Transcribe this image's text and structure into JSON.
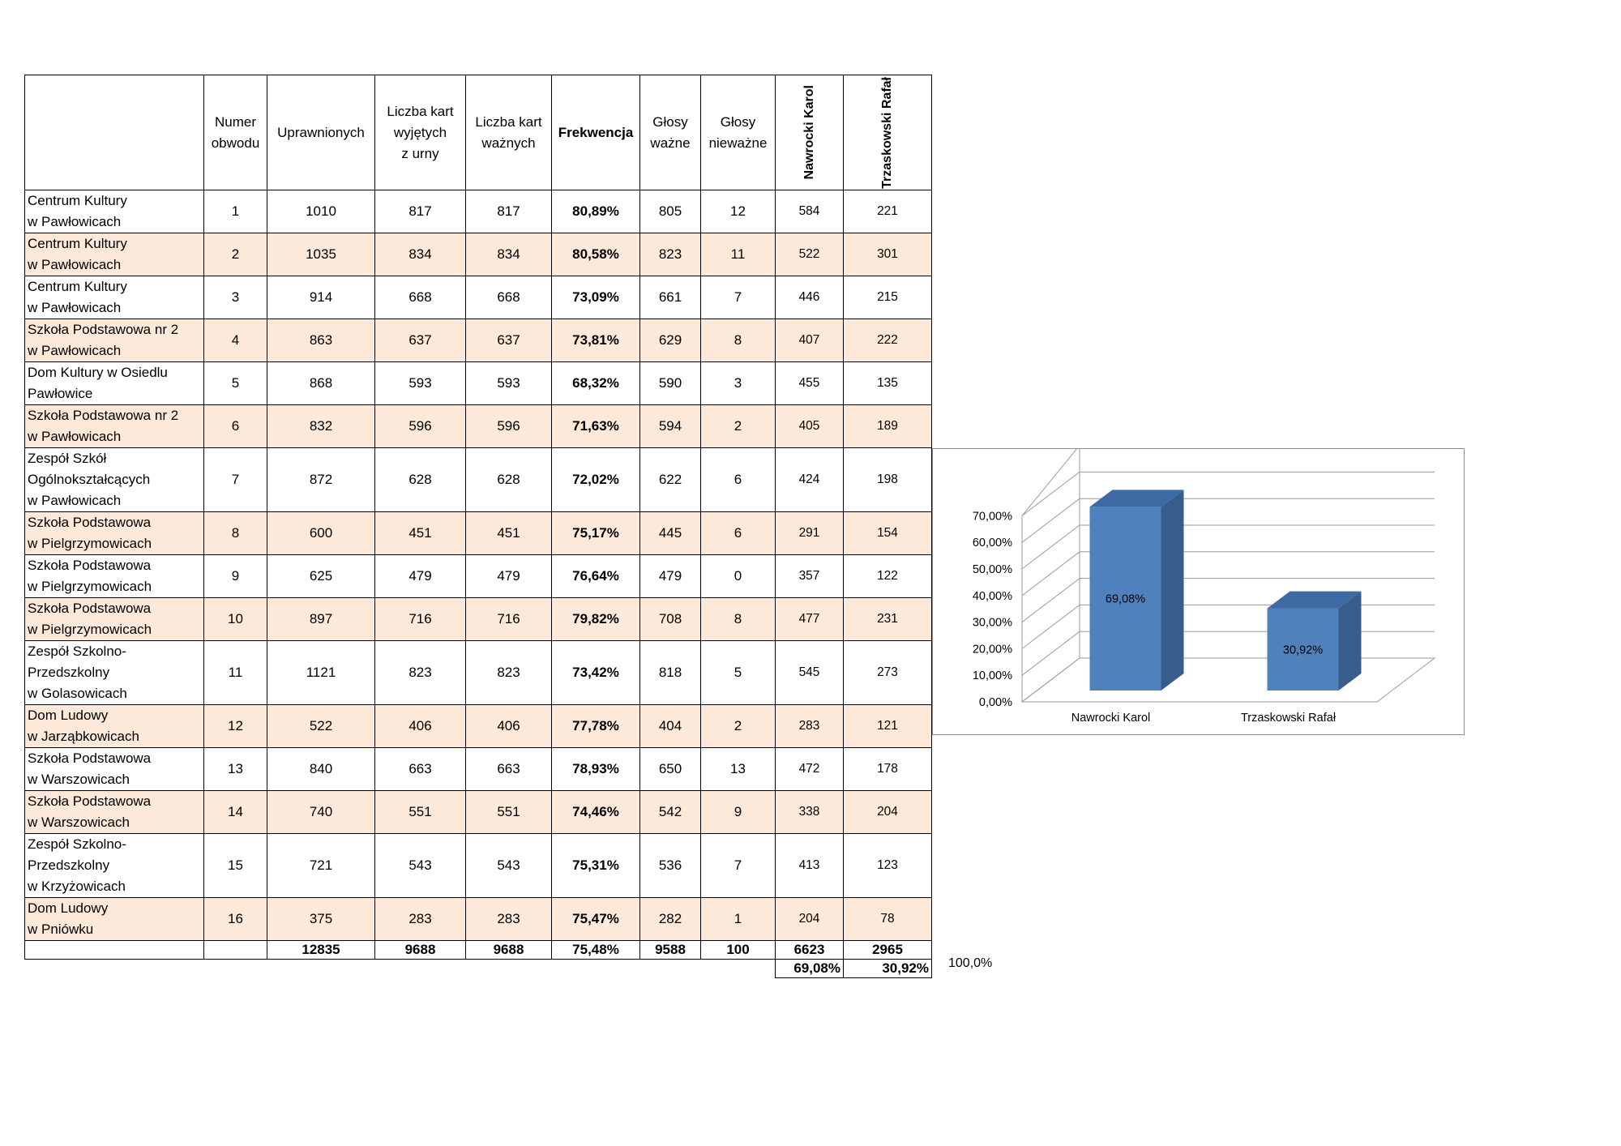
{
  "table": {
    "headers": {
      "location": "",
      "numer": [
        "Numer",
        "obwodu"
      ],
      "uprawnionych": "Uprawnionych",
      "wyjetych": [
        "Liczba kart",
        "wyjętych",
        "z urny"
      ],
      "waznych": [
        "Liczba kart",
        "ważnych"
      ],
      "frekwencja": "Frekwencja",
      "glosy_wazne": [
        "Głosy",
        "ważne"
      ],
      "glosy_niewazne": [
        "Głosy",
        "nieważne"
      ],
      "candidate1": "Nawrocki Karol",
      "candidate2": "Trzaskowski Rafał"
    },
    "rows": [
      {
        "location": [
          "Centrum Kultury",
          "w Pawłowicach"
        ],
        "numer": "1",
        "uprawnionych": "1010",
        "wyjetych": "817",
        "waznych": "817",
        "frekwencja": "80,89%",
        "glosy_wazne": "805",
        "glosy_niewazne": "12",
        "c1": "584",
        "c2": "221",
        "shaded": false
      },
      {
        "location": [
          "Centrum Kultury",
          "w Pawłowicach"
        ],
        "numer": "2",
        "uprawnionych": "1035",
        "wyjetych": "834",
        "waznych": "834",
        "frekwencja": "80,58%",
        "glosy_wazne": "823",
        "glosy_niewazne": "11",
        "c1": "522",
        "c2": "301",
        "shaded": true
      },
      {
        "location": [
          "Centrum Kultury",
          "w Pawłowicach"
        ],
        "numer": "3",
        "uprawnionych": "914",
        "wyjetych": "668",
        "waznych": "668",
        "frekwencja": "73,09%",
        "glosy_wazne": "661",
        "glosy_niewazne": "7",
        "c1": "446",
        "c2": "215",
        "shaded": false
      },
      {
        "location": [
          "Szkoła Podstawowa nr 2",
          "w Pawłowicach"
        ],
        "numer": "4",
        "uprawnionych": "863",
        "wyjetych": "637",
        "waznych": "637",
        "frekwencja": "73,81%",
        "glosy_wazne": "629",
        "glosy_niewazne": "8",
        "c1": "407",
        "c2": "222",
        "shaded": true
      },
      {
        "location": [
          "Dom Kultury w Osiedlu",
          "Pawłowice"
        ],
        "numer": "5",
        "uprawnionych": "868",
        "wyjetych": "593",
        "waznych": "593",
        "frekwencja": "68,32%",
        "glosy_wazne": "590",
        "glosy_niewazne": "3",
        "c1": "455",
        "c2": "135",
        "shaded": false
      },
      {
        "location": [
          "Szkoła Podstawowa nr 2",
          "w Pawłowicach"
        ],
        "numer": "6",
        "uprawnionych": "832",
        "wyjetych": "596",
        "waznych": "596",
        "frekwencja": "71,63%",
        "glosy_wazne": "594",
        "glosy_niewazne": "2",
        "c1": "405",
        "c2": "189",
        "shaded": true
      },
      {
        "location": [
          "Zespół Szkół",
          "Ogólnokształcących",
          "w Pawłowicach"
        ],
        "numer": "7",
        "uprawnionych": "872",
        "wyjetych": "628",
        "waznych": "628",
        "frekwencja": "72,02%",
        "glosy_wazne": "622",
        "glosy_niewazne": "6",
        "c1": "424",
        "c2": "198",
        "shaded": false
      },
      {
        "location": [
          "Szkoła Podstawowa",
          "w Pielgrzymowicach"
        ],
        "numer": "8",
        "uprawnionych": "600",
        "wyjetych": "451",
        "waznych": "451",
        "frekwencja": "75,17%",
        "glosy_wazne": "445",
        "glosy_niewazne": "6",
        "c1": "291",
        "c2": "154",
        "shaded": true
      },
      {
        "location": [
          "Szkoła Podstawowa",
          "w Pielgrzymowicach"
        ],
        "numer": "9",
        "uprawnionych": "625",
        "wyjetych": "479",
        "waznych": "479",
        "frekwencja": "76,64%",
        "glosy_wazne": "479",
        "glosy_niewazne": "0",
        "c1": "357",
        "c2": "122",
        "shaded": false
      },
      {
        "location": [
          "Szkoła Podstawowa",
          "w Pielgrzymowicach"
        ],
        "numer": "10",
        "uprawnionych": "897",
        "wyjetych": "716",
        "waznych": "716",
        "frekwencja": "79,82%",
        "glosy_wazne": "708",
        "glosy_niewazne": "8",
        "c1": "477",
        "c2": "231",
        "shaded": true
      },
      {
        "location": [
          "Zespół Szkolno-",
          "Przedszkolny",
          "w Golasowicach"
        ],
        "numer": "11",
        "uprawnionych": "1121",
        "wyjetych": "823",
        "waznych": "823",
        "frekwencja": "73,42%",
        "glosy_wazne": "818",
        "glosy_niewazne": "5",
        "c1": "545",
        "c2": "273",
        "shaded": false
      },
      {
        "location": [
          "Dom Ludowy",
          "w Jarząbkowicach"
        ],
        "numer": "12",
        "uprawnionych": "522",
        "wyjetych": "406",
        "waznych": "406",
        "frekwencja": "77,78%",
        "glosy_wazne": "404",
        "glosy_niewazne": "2",
        "c1": "283",
        "c2": "121",
        "shaded": true
      },
      {
        "location": [
          "Szkoła Podstawowa",
          "w Warszowicach"
        ],
        "numer": "13",
        "uprawnionych": "840",
        "wyjetych": "663",
        "waznych": "663",
        "frekwencja": "78,93%",
        "glosy_wazne": "650",
        "glosy_niewazne": "13",
        "c1": "472",
        "c2": "178",
        "shaded": false
      },
      {
        "location": [
          "Szkoła Podstawowa",
          "w Warszowicach"
        ],
        "numer": "14",
        "uprawnionych": "740",
        "wyjetych": "551",
        "waznych": "551",
        "frekwencja": "74,46%",
        "glosy_wazne": "542",
        "glosy_niewazne": "9",
        "c1": "338",
        "c2": "204",
        "shaded": true
      },
      {
        "location": [
          "Zespół Szkolno-",
          "Przedszkolny",
          "w Krzyżowicach"
        ],
        "numer": "15",
        "uprawnionych": "721",
        "wyjetych": "543",
        "waznych": "543",
        "frekwencja": "75,31%",
        "glosy_wazne": "536",
        "glosy_niewazne": "7",
        "c1": "413",
        "c2": "123",
        "shaded": false
      },
      {
        "location": [
          "Dom Ludowy",
          "w Pniówku"
        ],
        "numer": "16",
        "uprawnionych": "375",
        "wyjetych": "283",
        "waznych": "283",
        "frekwencja": "75,47%",
        "glosy_wazne": "282",
        "glosy_niewazne": "1",
        "c1": "204",
        "c2": "78",
        "shaded": true
      }
    ],
    "totals": {
      "uprawnionych": "12835",
      "wyjetych": "9688",
      "waznych": "9688",
      "frekwencja": "75,48%",
      "glosy_wazne": "9588",
      "glosy_niewazne": "100",
      "c1": "6623",
      "c2": "2965"
    },
    "percentages": {
      "c1": "69,08%",
      "c2": "30,92%",
      "sum": "100,0%"
    }
  },
  "chart_data": {
    "type": "bar",
    "categories": [
      "Nawrocki Karol",
      "Trzaskowski Rafał"
    ],
    "values": [
      69.08,
      30.92
    ],
    "data_labels": [
      "69,08%",
      "30,92%"
    ],
    "y_tick_labels": [
      "0,00%",
      "10,00%",
      "20,00%",
      "30,00%",
      "40,00%",
      "50,00%",
      "60,00%",
      "70,00%"
    ],
    "ylim": [
      0,
      70
    ],
    "three_d": true,
    "grid": true,
    "bar_color": "#4f81bd",
    "bar_side_color": "#385d8a",
    "bar_top_color": "#3e6aa3"
  }
}
